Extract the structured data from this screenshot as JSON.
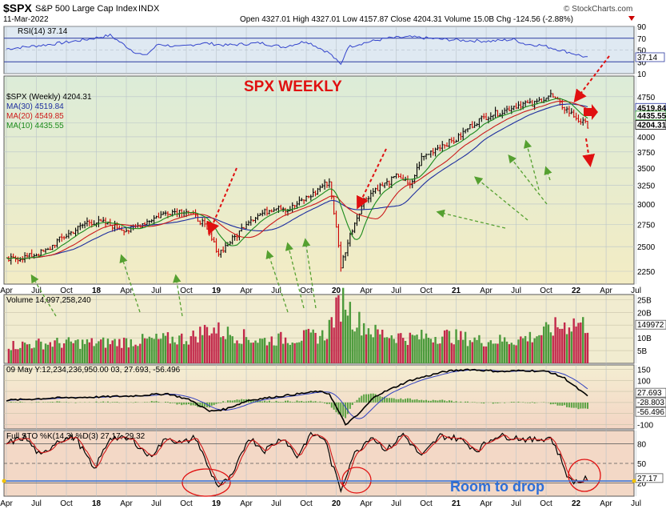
{
  "header": {
    "symbol": "$SPX",
    "name": "S&P 500 Large Cap Index",
    "exchange": "INDX",
    "date": "11-Mar-2022",
    "ohlc": "Open 4327.01  High 4327.01  Low 4157.87  Close 4204.31  Volume 15.0B  Chg -124.56 (-2.88%)",
    "watermark": "© StockCharts.com"
  },
  "colors": {
    "price_up": "#000000",
    "price_down": "#cc0000",
    "ma30": "#1f2f9f",
    "ma20": "#cc1a1a",
    "ma10": "#1a8a1a",
    "rsi_line": "#3344cc",
    "vol_up": "#4c9a3c",
    "vol_down": "#c2284a",
    "annotation_red": "#e01010",
    "annotation_green": "#55a030",
    "annotation_blue": "#2e6fd8"
  },
  "chart_data": [
    {
      "panel": "rsi",
      "type": "line",
      "legend": "RSI(14) 37.14",
      "ylim": [
        10,
        90
      ],
      "ticks": [
        "90",
        "70",
        "50",
        "30",
        "10"
      ],
      "levels": [
        70,
        30
      ],
      "last_value_label": "37.14",
      "x_weeks": [
        0,
        20,
        35,
        45,
        55,
        60,
        66,
        75,
        85,
        95,
        110,
        120,
        130,
        140,
        145,
        148,
        155,
        165,
        175,
        190,
        200,
        210,
        220,
        225,
        232,
        238,
        245,
        252
      ],
      "values": [
        52,
        60,
        68,
        75,
        48,
        40,
        60,
        55,
        62,
        58,
        62,
        55,
        65,
        45,
        25,
        55,
        62,
        70,
        72,
        68,
        66,
        65,
        68,
        60,
        58,
        52,
        45,
        37
      ]
    },
    {
      "panel": "price",
      "type": "line",
      "title": "SPX WEEKLY",
      "legend": [
        "$SPX (Weekly) 4204.31",
        "MA(30) 4519.84",
        "MA(20) 4549.85",
        "MA(10) 4435.55"
      ],
      "yscale": "log",
      "ylim": [
        2130,
        5100
      ],
      "yticks": [
        2250,
        2500,
        2750,
        3000,
        3250,
        3500,
        3750,
        4000,
        4250,
        4750
      ],
      "last_value_labels": [
        "4519.84",
        "4435.55",
        "4204.31"
      ],
      "x_weeks": [
        0,
        10,
        18,
        22,
        32,
        35,
        42,
        50,
        53,
        62,
        70,
        78,
        85,
        92,
        100,
        105,
        110,
        118,
        122,
        126,
        130,
        134,
        136,
        140,
        145,
        150,
        155,
        160,
        166,
        170,
        175,
        180,
        184,
        188,
        195,
        200,
        205,
        210,
        215,
        220,
        225,
        228,
        232,
        236,
        240,
        244,
        248,
        252
      ],
      "close": [
        2360,
        2400,
        2460,
        2560,
        2720,
        2780,
        2770,
        2700,
        2680,
        2800,
        2900,
        2920,
        2770,
        2430,
        2630,
        2800,
        2870,
        2980,
        2920,
        3000,
        3080,
        3150,
        3230,
        3300,
        2300,
        2700,
        3050,
        3200,
        3300,
        3400,
        3230,
        3650,
        3750,
        3850,
        3950,
        4150,
        4300,
        4400,
        4450,
        4560,
        4620,
        4580,
        4700,
        4780,
        4600,
        4450,
        4300,
        4204
      ]
    },
    {
      "panel": "volume",
      "type": "bar",
      "legend": "Volume 14,997,258,240",
      "yticks": [
        "25B",
        "20B",
        "15B",
        "10B",
        "5B"
      ],
      "ylim": [
        0,
        27
      ],
      "last_value_label": "14997258240",
      "unit": "B",
      "x_weeks": [
        0,
        20,
        40,
        60,
        80,
        88,
        95,
        110,
        125,
        138,
        144,
        147,
        150,
        160,
        175,
        190,
        205,
        220,
        230,
        238,
        246,
        252
      ],
      "values": [
        7,
        8,
        8,
        9,
        10,
        14,
        12,
        9,
        10,
        11,
        22,
        26,
        18,
        12,
        10,
        11,
        9,
        9,
        11,
        14,
        16,
        15
      ]
    },
    {
      "panel": "macd",
      "type": "line",
      "legend": "09 May Y:12,234,236,950.00  03, 27.693, -56.496",
      "yticks": [
        "150",
        "100",
        "50",
        "0",
        "-50",
        "-100"
      ],
      "ylim": [
        -120,
        170
      ],
      "last_value_labels": [
        "27.693",
        "-28.803",
        "-56.496"
      ],
      "x_weeks": [
        0,
        20,
        40,
        55,
        70,
        80,
        88,
        95,
        105,
        120,
        135,
        140,
        147,
        152,
        160,
        175,
        190,
        200,
        215,
        225,
        235,
        242,
        248,
        252
      ],
      "values": [
        10,
        20,
        25,
        30,
        40,
        10,
        -40,
        -30,
        10,
        30,
        50,
        40,
        -100,
        -60,
        30,
        100,
        140,
        150,
        140,
        145,
        140,
        110,
        60,
        28
      ]
    },
    {
      "panel": "stochastic",
      "type": "line",
      "legend": "Full STO %K(14,3) %D(3) 27.17, 29.32",
      "yticks": [
        "80",
        "50",
        "20"
      ],
      "ylim": [
        0,
        100
      ],
      "levels": [
        80,
        50,
        20
      ],
      "last_value_label": "27.17",
      "x_weeks": [
        0,
        8,
        15,
        22,
        30,
        38,
        45,
        55,
        62,
        70,
        76,
        82,
        88,
        92,
        98,
        105,
        112,
        120,
        126,
        132,
        138,
        141,
        145,
        150,
        158,
        165,
        172,
        180,
        188,
        196,
        204,
        212,
        220,
        228,
        236,
        240,
        244,
        248,
        252
      ],
      "values": [
        80,
        90,
        60,
        85,
        90,
        40,
        90,
        85,
        60,
        90,
        80,
        90,
        40,
        15,
        30,
        90,
        70,
        90,
        60,
        95,
        88,
        50,
        10,
        60,
        92,
        70,
        95,
        60,
        92,
        88,
        70,
        92,
        90,
        85,
        90,
        60,
        25,
        22,
        27
      ]
    }
  ],
  "x_axis": {
    "labels": [
      "Apr",
      "Jul",
      "Oct",
      "18",
      "Apr",
      "Jul",
      "Oct",
      "19",
      "Apr",
      "Jul",
      "Oct",
      "20",
      "Apr",
      "Jul",
      "Oct",
      "21",
      "Apr",
      "Jul",
      "Oct",
      "22",
      "Apr",
      "Jul"
    ]
  },
  "annotations": {
    "room_to_drop": "Room to drop"
  }
}
